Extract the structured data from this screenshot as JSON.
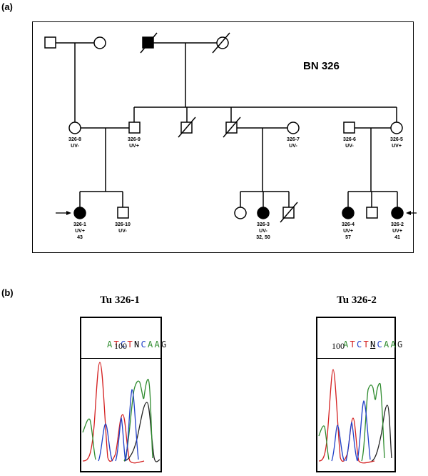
{
  "panels": {
    "a": "(a)",
    "b": "(b)"
  },
  "family_id": "BN 326",
  "members": {
    "m326_8": "326-8\nUV-",
    "m326_9": "326-9\nUV+",
    "m326_7": "326-7\nUV-",
    "m326_6": "326-6\nUV-",
    "m326_5": "326-5\nUV+",
    "m326_1": "326-1\nUV+\n43",
    "m326_10": "326-10\nUV-",
    "m326_3": "326-3\nUV-\n32, 50",
    "m326_4": "326-4\nUV+\n57",
    "m326_2": "326-2\nUV+\n41"
  },
  "tumors": [
    {
      "title": "Tu 326-1",
      "sequence": [
        "A",
        "T",
        "C",
        "T",
        "N",
        "C",
        "A",
        "A",
        "G"
      ],
      "position": "100"
    },
    {
      "title": "Tu 326-2",
      "sequence": [
        "A",
        "T",
        "C",
        "T",
        "N",
        "C",
        "A",
        "A",
        "G"
      ],
      "position": "100"
    }
  ],
  "colors": {
    "A": "#2e8b2e",
    "T": "#d42020",
    "C": "#2040c8",
    "G": "#222222",
    "N": "#000000"
  }
}
